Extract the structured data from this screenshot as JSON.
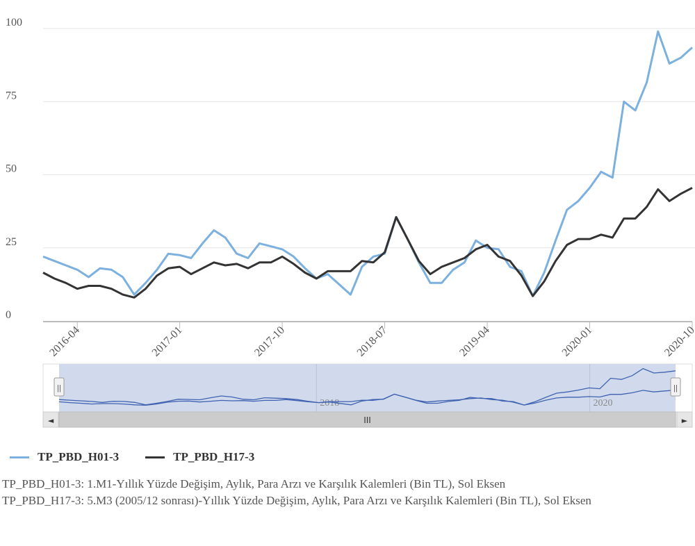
{
  "chart_data": {
    "type": "line",
    "title": "",
    "xlabel": "",
    "ylabel": "",
    "ylim": [
      0,
      100
    ],
    "yticks": [
      0,
      25,
      50,
      75,
      100
    ],
    "xtick_labels": [
      "2016-04",
      "2017-01",
      "2017-10",
      "2018-07",
      "2019-04",
      "2020-01",
      "2020-10"
    ],
    "x_start": "2016-01",
    "x_end": "2020-10",
    "series": [
      {
        "name": "TP_PBD_H01-3",
        "color": "#7cb0de",
        "values": [
          22,
          20.5,
          19,
          17.5,
          15,
          18,
          17.5,
          15,
          9,
          13,
          17.5,
          23,
          22.5,
          21.5,
          26.5,
          31,
          28.5,
          23,
          21.5,
          26.5,
          25.5,
          24.5,
          22,
          18,
          14.5,
          16,
          12.5,
          9,
          18.5,
          22,
          23,
          35.5,
          28,
          20,
          13,
          13,
          17.5,
          20,
          27.5,
          25,
          24.5,
          18.5,
          17,
          8.5,
          16.5,
          27.5,
          38,
          41,
          45.5,
          51,
          49,
          75,
          72,
          81.5,
          99,
          88,
          90,
          93.5
        ]
      },
      {
        "name": "TP_PBD_H17-3",
        "color": "#333333",
        "values": [
          16.5,
          14.5,
          13,
          11,
          12,
          12,
          11,
          9,
          8,
          11,
          15.5,
          18,
          18.5,
          16,
          18,
          20,
          19,
          19.5,
          18,
          20,
          20,
          22,
          19.5,
          16.5,
          14.5,
          17,
          17,
          17,
          20.5,
          20,
          23.5,
          35.5,
          28,
          20.5,
          16,
          18.5,
          20,
          21.5,
          24.5,
          26,
          22,
          20.5,
          15.5,
          8.5,
          13.5,
          20.5,
          26,
          28,
          28,
          29.5,
          28.5,
          35,
          35,
          39,
          45,
          41,
          43.5,
          45.5
        ]
      }
    ],
    "navigator": {
      "labels": [
        "2018",
        "2020"
      ],
      "scroll_handle_label": "III",
      "left_arrow": "◄",
      "right_arrow": "►",
      "handle_grip": "||"
    }
  },
  "legend": {
    "items": [
      {
        "label": "TP_PBD_H01-3",
        "color": "#7cb0de"
      },
      {
        "label": "TP_PBD_H17-3",
        "color": "#333333"
      }
    ]
  },
  "notes": {
    "line1": "TP_PBD_H01-3: 1.M1-Yıllık Yüzde Değişim, Aylık, Para Arzı ve Karşılık Kalemleri (Bin TL), Sol Eksen",
    "line2": "TP_PBD_H17-3: 5.M3 (2005/12 sonrası)-Yıllık Yüzde Değişim, Aylık, Para Arzı ve Karşılık Kalemleri (Bin TL), Sol Eksen"
  }
}
